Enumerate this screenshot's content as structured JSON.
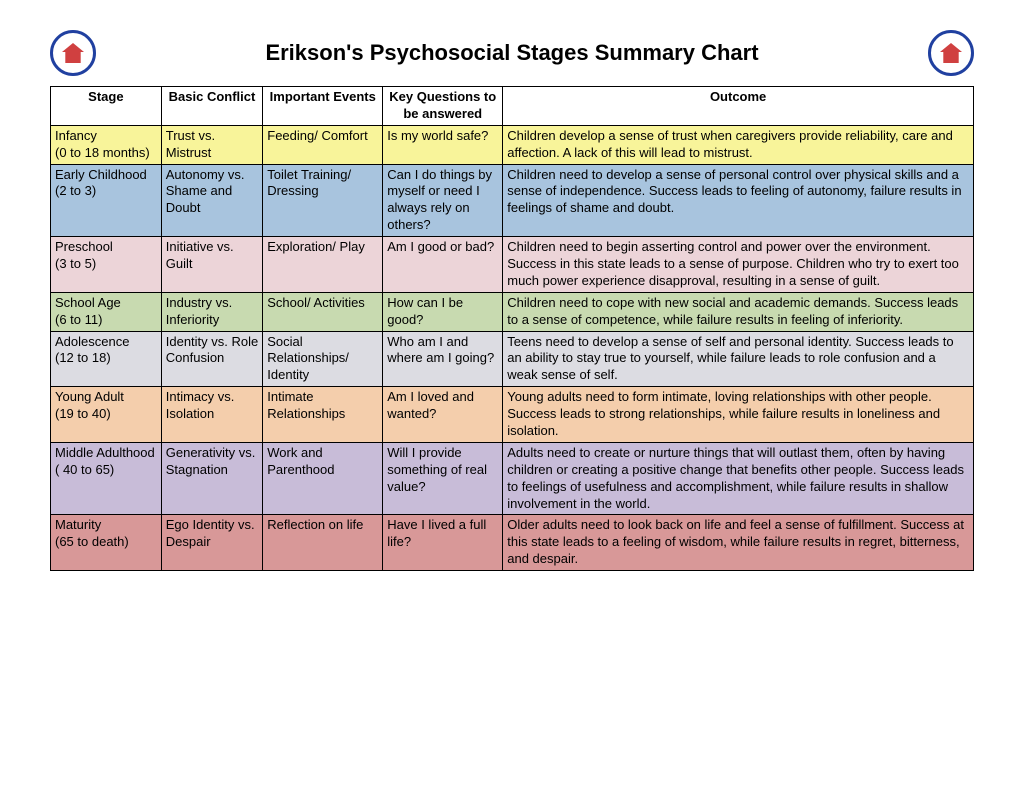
{
  "title": "Erikson's Psychosocial Stages Summary Chart",
  "columns": [
    "Stage",
    "Basic Conflict",
    "Important Events",
    "Key Questions to be answered",
    "Outcome"
  ],
  "row_colors": [
    "#f8f49a",
    "#a8c4de",
    "#ecd4d8",
    "#c8dab0",
    "#dcdce2",
    "#f4ceac",
    "#c8bcd8",
    "#d89898"
  ],
  "rows": [
    {
      "stage": "Infancy\n(0 to 18 months)",
      "conflict": "Trust vs. Mistrust",
      "events": "Feeding/ Comfort",
      "questions": "Is my world safe?",
      "outcome": "Children develop a sense of trust when caregivers provide reliability, care and affection. A lack of this will lead to mistrust."
    },
    {
      "stage": "Early Childhood\n(2 to 3)",
      "conflict": "Autonomy vs. Shame and Doubt",
      "events": "Toilet Training/ Dressing",
      "questions": "Can I do things by myself or need I always rely on others?",
      "outcome": "Children need to develop a sense of personal control over physical skills and a sense of independence. Success leads to feeling of autonomy, failure results in feelings of shame and doubt."
    },
    {
      "stage": "Preschool\n(3 to 5)",
      "conflict": "Initiative vs. Guilt",
      "events": "Exploration/ Play",
      "questions": "Am I good or bad?",
      "outcome": "Children need to begin asserting control and power over the environment. Success in this state leads to a sense of purpose. Children who try to exert too much power experience disapproval, resulting in a sense of guilt."
    },
    {
      "stage": "School Age\n(6 to 11)",
      "conflict": "Industry vs. Inferiority",
      "events": "School/ Activities",
      "questions": "How can I be good?",
      "outcome": "Children need to cope with new social and academic demands. Success leads to a sense of competence, while failure results in feeling of inferiority."
    },
    {
      "stage": "Adolescence\n(12 to 18)",
      "conflict": "Identity vs. Role Confusion",
      "events": "Social Relationships/ Identity",
      "questions": "Who am I and where am I going?",
      "outcome": "Teens need to develop a sense of self and personal identity. Success leads to an ability to stay true to yourself, while failure leads to role confusion and a weak sense of self."
    },
    {
      "stage": "Young Adult\n(19 to 40)",
      "conflict": "Intimacy vs. Isolation",
      "events": "Intimate Relationships",
      "questions": "Am I loved and wanted?",
      "outcome": "Young adults need to form intimate, loving relationships with other people. Success leads to strong relationships, while failure results in loneliness and isolation."
    },
    {
      "stage": "Middle Adulthood ( 40 to 65)",
      "conflict": "Generativity vs. Stagnation",
      "events": "Work and Parenthood",
      "questions": "Will I provide something of real value?",
      "outcome": "Adults need to create or nurture things that will outlast them, often by having children or creating a positive change that benefits other people. Success leads to feelings of usefulness and accomplishment, while failure results in shallow involvement in the world."
    },
    {
      "stage": "Maturity\n(65 to death)",
      "conflict": "Ego Identity vs. Despair",
      "events": "Reflection on life",
      "questions": "Have I lived a full life?",
      "outcome": "Older adults need to look back on life and feel a sense of fulfillment. Success at this state leads to a feeling of wisdom, while failure results in regret, bitterness, and despair."
    }
  ]
}
